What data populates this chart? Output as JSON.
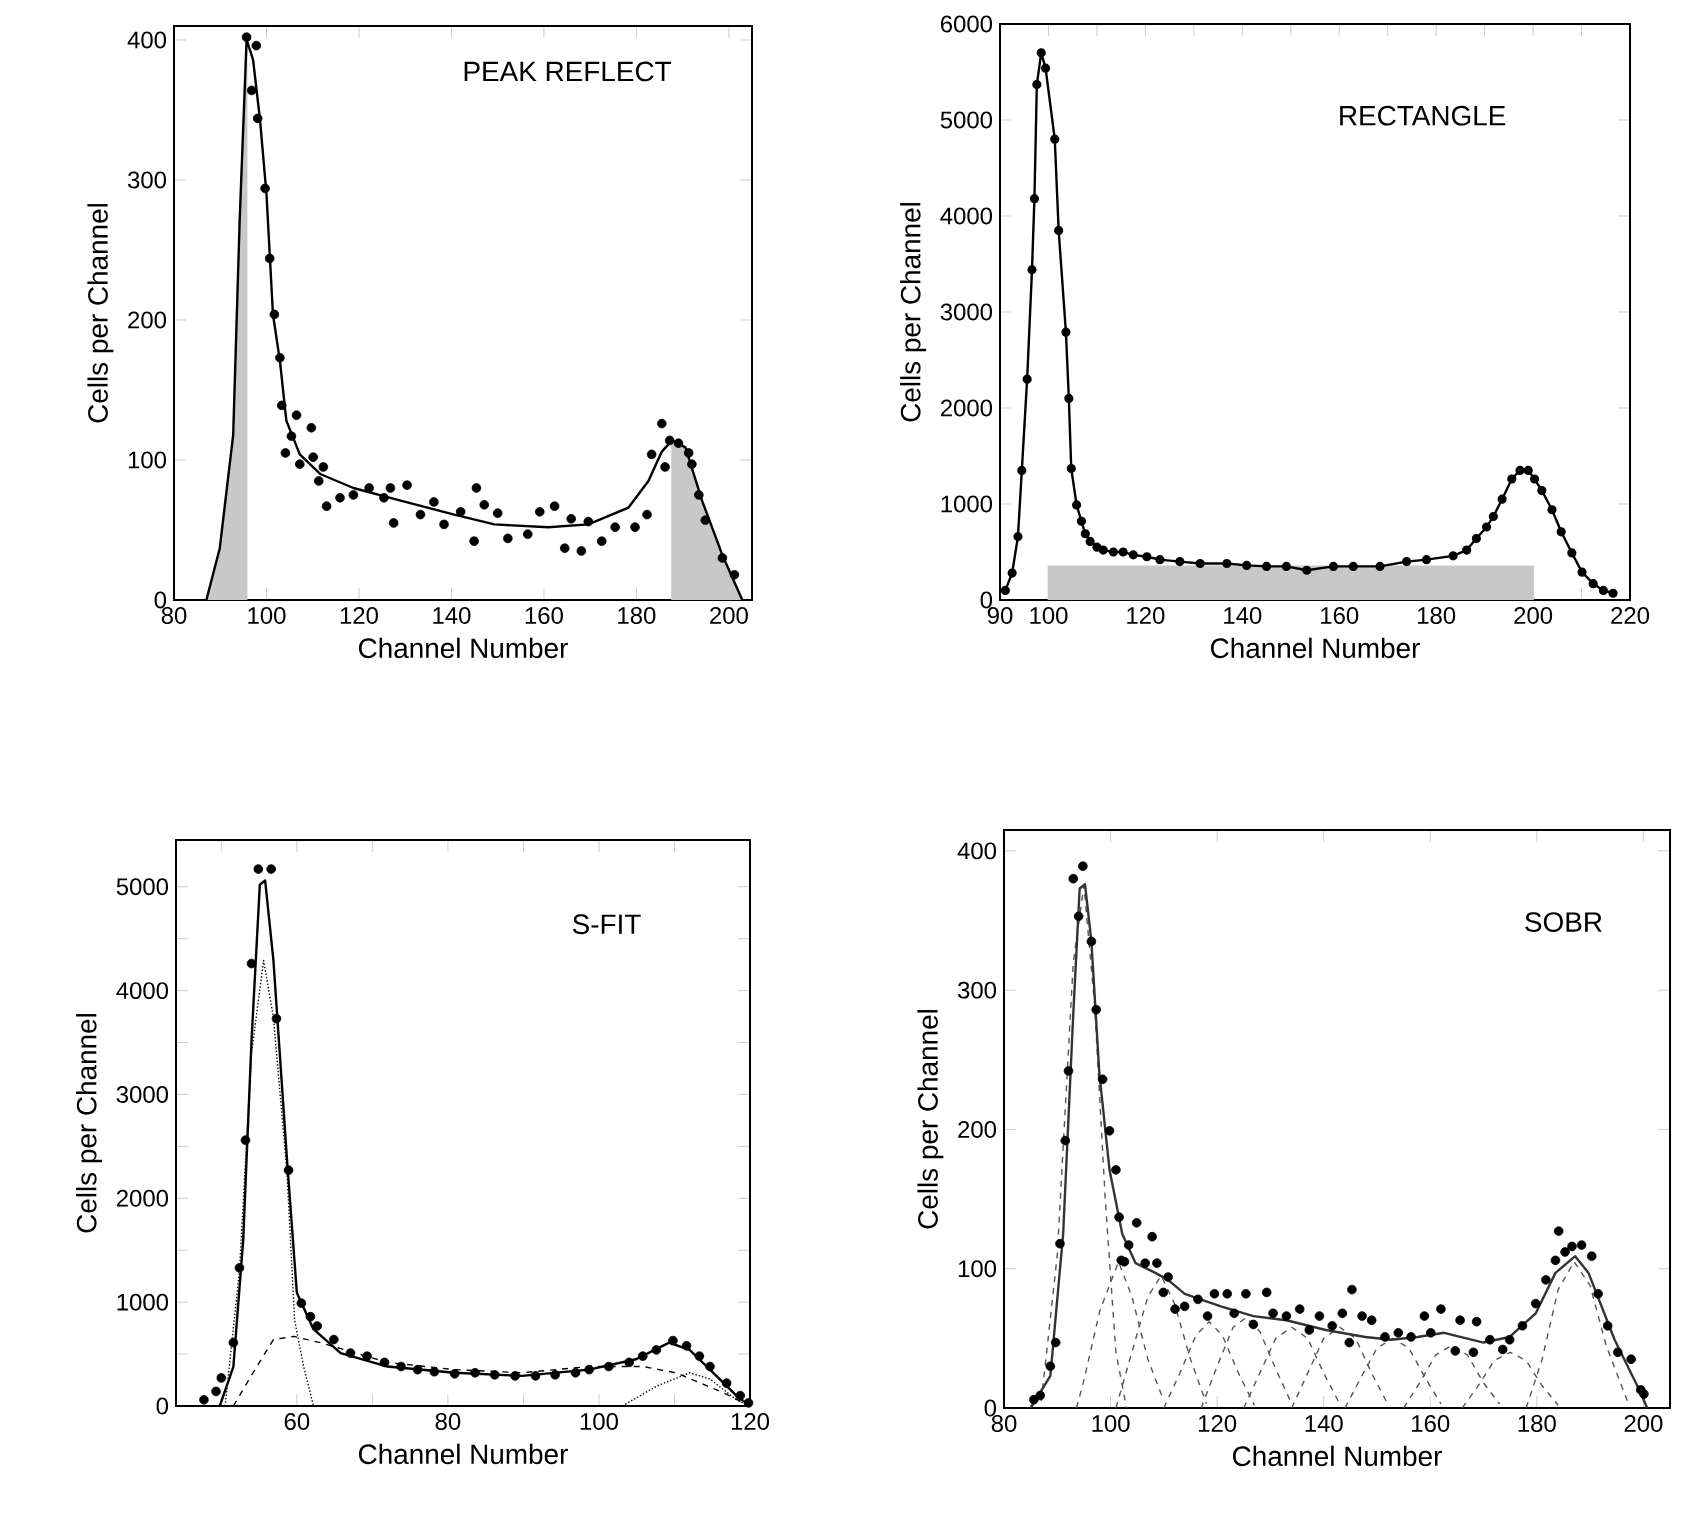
{
  "chart_data": [
    {
      "type": "line",
      "title": "PEAK REFLECT",
      "xlabel": "Channel Number",
      "ylabel": "Cells per Channel",
      "xlim": [
        80,
        205
      ],
      "ylim": [
        0,
        410
      ],
      "xticks": [
        80,
        100,
        120,
        140,
        160,
        180,
        200
      ],
      "yticks": [
        0,
        100,
        200,
        300,
        400
      ],
      "series": [
        {
          "type": "area",
          "color": "#c8c8c8",
          "x": [
            87,
            89.9,
            92.8,
            94.2,
            95.7
          ],
          "values": [
            0,
            37,
            118,
            271,
            400
          ]
        },
        {
          "type": "area",
          "color": "#c8c8c8",
          "x": [
            187.7,
            190.6,
            194.2,
            198.6,
            202.9
          ],
          "values": [
            114,
            109,
            71,
            32,
            0
          ]
        },
        {
          "type": "line",
          "color": "#000000",
          "line_style": "solid",
          "x": [
            87,
            89.9,
            92.8,
            94.2,
            95.7,
            97.1,
            98.6,
            100,
            101.4,
            102.9,
            104.3,
            107.2,
            111.6,
            118.8,
            129,
            140.6,
            149.3,
            160.9,
            169.6,
            178.3,
            182.6,
            185.5,
            187.7,
            190.6,
            194.2,
            198.6,
            202.9
          ],
          "values": [
            0,
            37,
            118,
            271,
            400,
            386,
            343,
            290,
            204,
            171,
            128,
            104,
            90,
            80,
            71,
            61,
            54,
            52,
            54,
            66,
            85,
            106,
            114,
            109,
            71,
            32,
            0
          ]
        },
        {
          "type": "scatter",
          "color": "#000000",
          "marker": "circle",
          "x": [
            95.7,
            97.8,
            96.8,
            98.1,
            99.7,
            100.7,
            101.7,
            102.9,
            103.3,
            105.4,
            106.5,
            104.1,
            107.2,
            109.7,
            110.1,
            111.3,
            112.3,
            113,
            115.9,
            118.8,
            122.2,
            125.4,
            126.8,
            127.5,
            130.4,
            133.3,
            136.2,
            138.4,
            142,
            144.9,
            145.4,
            147.1,
            150,
            152.2,
            156.5,
            159.1,
            162.3,
            164.5,
            165.9,
            168.1,
            169.6,
            172.5,
            175.4,
            179.7,
            182.3,
            183.3,
            185.5,
            186.2,
            187.2,
            189.1,
            191.3,
            192,
            193.5,
            194.9,
            198.6,
            201.2
          ],
          "values": [
            402,
            396,
            364,
            344,
            294,
            244,
            204,
            173,
            139,
            117,
            132,
            105,
            97,
            123,
            102,
            85,
            95,
            67,
            73,
            75,
            80,
            73,
            80,
            55,
            82,
            61,
            70,
            54,
            63,
            42,
            80,
            68,
            62,
            44,
            47,
            63,
            67,
            37,
            58,
            35,
            56,
            42,
            52,
            52,
            61,
            104,
            126,
            95,
            114,
            112,
            105,
            97,
            75,
            57,
            30,
            18
          ]
        }
      ]
    },
    {
      "type": "line",
      "title": "RECTANGLE",
      "xlabel": "Channel Number",
      "ylabel": "Cells per Channel",
      "xlim": [
        90,
        220
      ],
      "ylim": [
        0,
        6000
      ],
      "xticks": [
        90,
        100,
        {
          "value": 110,
          "label": null
        },
        120,
        {
          "value": 130,
          "label": null
        },
        140,
        {
          "value": 150,
          "label": null
        },
        160,
        {
          "value": 170,
          "label": null
        },
        180,
        {
          "value": 190,
          "label": null
        },
        200,
        {
          "value": 210,
          "label": null
        },
        220
      ],
      "yticks": [
        0,
        1000,
        2000,
        3000,
        4000,
        5000,
        6000
      ],
      "series": [
        {
          "type": "area",
          "color": "#c8c8c8",
          "x": [
            100,
            200
          ],
          "values": [
            350,
            350
          ]
        },
        {
          "type": "line",
          "color": "#000000",
          "line_style": "solid",
          "marker": "circle",
          "x": [
            91.1,
            92.5,
            93.7,
            94.5,
            95.6,
            96.6,
            97.1,
            97.6,
            98.5,
            99.4,
            101.3,
            102.1,
            103.6,
            104.2,
            104.7,
            105.8,
            106.8,
            107.6,
            108.6,
            110,
            111.3,
            113.4,
            115.4,
            117.5,
            120.3,
            123,
            127.1,
            131.3,
            136.8,
            140.9,
            145,
            149.1,
            153.3,
            158.8,
            162.9,
            168.4,
            173.9,
            178,
            183.5,
            186.3,
            188.3,
            190.4,
            191.8,
            193.6,
            195.6,
            197.3,
            199,
            200.3,
            201.8,
            203.9,
            205.8,
            208,
            210.1,
            212.4,
            214.5,
            216.5
          ],
          "values": [
            100,
            280,
            660,
            1350,
            2300,
            3440,
            4180,
            5370,
            5700,
            5540,
            4800,
            3850,
            2790,
            2100,
            1370,
            990,
            820,
            690,
            610,
            550,
            520,
            500,
            500,
            470,
            450,
            420,
            400,
            380,
            380,
            360,
            350,
            350,
            310,
            350,
            350,
            350,
            400,
            420,
            460,
            520,
            640,
            760,
            870,
            1050,
            1260,
            1350,
            1350,
            1260,
            1140,
            940,
            710,
            490,
            290,
            170,
            100,
            70
          ]
        }
      ]
    },
    {
      "type": "line",
      "title": "S-FIT",
      "xlabel": "Channel Number",
      "ylabel": "Cells per Channel",
      "xlim": [
        44,
        120
      ],
      "ylim": [
        0,
        5450
      ],
      "xticks": [
        {
          "value": 50,
          "label": null
        },
        60,
        {
          "value": 70,
          "label": null
        },
        80,
        {
          "value": 90,
          "label": null
        },
        100,
        {
          "value": 110,
          "label": null
        },
        120
      ],
      "yticks": [
        0,
        {
          "value": 500,
          "label": null
        },
        1000,
        {
          "value": 1500,
          "label": null
        },
        2000,
        {
          "value": 2500,
          "label": null
        },
        3000,
        {
          "value": 3500,
          "label": null
        },
        4000,
        {
          "value": 4500,
          "label": null
        },
        5000
      ],
      "series": [
        {
          "type": "line",
          "color": "#000000",
          "line_style": "dotted",
          "x": [
            50.5,
            52.4,
            54,
            55.6,
            56.9,
            58.7,
            59.7,
            60.9,
            62.2
          ],
          "values": [
            0,
            1300,
            3400,
            4290,
            3740,
            2240,
            830,
            380,
            0
          ]
        },
        {
          "type": "line",
          "color": "#000000",
          "line_style": "dashed",
          "x": [
            51.6,
            54.2,
            56.9,
            59.6,
            63.1,
            72,
            80.9,
            89.8,
            98.7,
            105.8,
            110.2,
            116.4,
            120
          ],
          "values": [
            0,
            320,
            640,
            670,
            610,
            420,
            350,
            320,
            380,
            380,
            320,
            130,
            0
          ]
        },
        {
          "type": "line",
          "color": "#000000",
          "line_style": "dotted",
          "x": [
            103.1,
            107.6,
            112,
            114.7,
            118.2,
            120
          ],
          "values": [
            0,
            190,
            320,
            260,
            60,
            0
          ]
        },
        {
          "type": "line",
          "color": "#000000",
          "line_style": "solid",
          "x": [
            49.8,
            51.6,
            52.9,
            54,
            55.1,
            55.8,
            56.9,
            58.7,
            60,
            62.2,
            65.8,
            72,
            80.9,
            89.8,
            98.7,
            104.9,
            109.3,
            112,
            114.7,
            118.2,
            120
          ],
          "values": [
            0,
            380,
            1600,
            3520,
            5020,
            5060,
            4290,
            2370,
            1090,
            740,
            510,
            380,
            320,
            290,
            350,
            450,
            610,
            540,
            350,
            100,
            0
          ]
        },
        {
          "type": "scatter",
          "color": "#000000",
          "marker": "circle",
          "x": [
            47.7,
            49.3,
            50,
            51.6,
            52.4,
            53.2,
            54,
            54.9,
            56.6,
            57.3,
            58.9,
            60.6,
            61.8,
            62.7,
            64.9,
            67.1,
            69.3,
            71.6,
            73.8,
            76,
            78.2,
            80.9,
            83.6,
            86.2,
            88.9,
            91.6,
            94.2,
            96.9,
            98.7,
            101.3,
            104,
            105.8,
            107.6,
            109.8,
            111.6,
            113.3,
            114.7,
            116.9,
            118.7,
            119.8
          ],
          "values": [
            60,
            140,
            270,
            610,
            1330,
            2560,
            4260,
            5170,
            5170,
            3730,
            2270,
            990,
            860,
            770,
            640,
            510,
            480,
            420,
            380,
            350,
            330,
            310,
            320,
            300,
            290,
            290,
            300,
            320,
            350,
            380,
            420,
            480,
            540,
            630,
            580,
            480,
            380,
            220,
            100,
            30
          ]
        }
      ]
    },
    {
      "type": "line",
      "title": "SOBR",
      "xlabel": "Channel Number",
      "ylabel": "Cells per Channel",
      "xlim": [
        80,
        205
      ],
      "ylim": [
        0,
        415
      ],
      "xticks": [
        80,
        100,
        120,
        140,
        160,
        180,
        200
      ],
      "yticks": [
        0,
        100,
        200,
        300,
        400
      ],
      "series": [
        {
          "type": "line",
          "color": "#555555",
          "line_style": "dashed",
          "x": [
            87,
            90,
            93,
            95,
            97,
            99,
            101,
            103
          ],
          "values": [
            5,
            110,
            320,
            375,
            290,
            150,
            40,
            0
          ]
        },
        {
          "type": "line",
          "color": "#555555",
          "line_style": "dashed",
          "x": [
            93.6,
            95,
            98,
            101.5,
            104,
            107,
            110
          ],
          "values": [
            0,
            20,
            70,
            105,
            80,
            35,
            5
          ]
        },
        {
          "type": "line",
          "color": "#555555",
          "line_style": "dashed",
          "x": [
            101,
            104,
            107,
            109.5,
            112,
            115,
            118
          ],
          "values": [
            0,
            40,
            80,
            95,
            75,
            35,
            3
          ]
        },
        {
          "type": "line",
          "color": "#555555",
          "line_style": "dashed",
          "x": [
            110,
            113,
            116,
            118.5,
            121,
            124,
            127
          ],
          "values": [
            0,
            25,
            52,
            62,
            52,
            25,
            2
          ]
        },
        {
          "type": "line",
          "color": "#555555",
          "line_style": "dashed",
          "x": [
            117,
            120,
            123,
            125.5,
            128,
            131,
            134
          ],
          "values": [
            0,
            30,
            58,
            65,
            55,
            28,
            3
          ]
        },
        {
          "type": "line",
          "color": "#555555",
          "line_style": "dashed",
          "x": [
            125,
            128,
            131,
            134,
            137,
            140,
            143
          ],
          "values": [
            0,
            25,
            50,
            58,
            50,
            25,
            3
          ]
        },
        {
          "type": "line",
          "color": "#555555",
          "line_style": "dashed",
          "x": [
            134,
            137,
            140,
            143,
            146,
            149,
            152
          ],
          "values": [
            0,
            25,
            50,
            58,
            50,
            25,
            3
          ]
        },
        {
          "type": "line",
          "color": "#555555",
          "line_style": "dashed",
          "x": [
            144,
            147,
            150,
            153,
            156,
            159,
            162
          ],
          "values": [
            0,
            22,
            43,
            50,
            43,
            22,
            3
          ]
        },
        {
          "type": "line",
          "color": "#555555",
          "line_style": "dashed",
          "x": [
            155,
            158,
            161,
            164,
            167,
            170,
            173
          ],
          "values": [
            0,
            18,
            38,
            45,
            38,
            18,
            3
          ]
        },
        {
          "type": "line",
          "color": "#555555",
          "line_style": "dashed",
          "x": [
            166,
            169,
            172,
            175,
            178,
            181,
            184
          ],
          "values": [
            0,
            16,
            34,
            40,
            34,
            16,
            2
          ]
        },
        {
          "type": "line",
          "color": "#555555",
          "line_style": "dashed",
          "x": [
            178,
            181,
            184,
            187,
            190,
            193,
            197
          ],
          "values": [
            0,
            35,
            85,
            105,
            88,
            45,
            5
          ]
        },
        {
          "type": "line",
          "color": "#333333",
          "line_style": "solid",
          "x": [
            85,
            88.7,
            91.1,
            93,
            94.2,
            95.2,
            96.4,
            97.9,
            99.8,
            102.2,
            104.7,
            108.4,
            110.8,
            113.9,
            120.7,
            126.8,
            133,
            140.4,
            147.8,
            152.7,
            157.6,
            162.6,
            170,
            174.9,
            179.8,
            183.5,
            187.2,
            189.7,
            194.6,
            199.5,
            200.7
          ],
          "values": [
            0,
            23,
            125,
            283,
            373,
            376,
            335,
            240,
            171,
            125,
            104,
            97,
            92,
            82,
            73,
            66,
            63,
            56,
            51,
            49,
            51,
            54,
            47,
            51,
            68,
            97,
            109,
            97,
            49,
            11,
            0
          ]
        },
        {
          "type": "scatter",
          "color": "#000000",
          "marker": "circle",
          "x": [
            85.6,
            86.8,
            88.7,
            89.7,
            90.5,
            91.5,
            92.1,
            93,
            94,
            94.8,
            96.4,
            97.3,
            98.5,
            99.8,
            101,
            101.6,
            102,
            102.6,
            103.4,
            104.9,
            106.5,
            107.8,
            108.7,
            109.9,
            110.8,
            112.1,
            113.9,
            116.4,
            118.2,
            119.5,
            121.9,
            123.2,
            125.4,
            126.8,
            129.3,
            130.5,
            133,
            135.5,
            137.3,
            139.2,
            141.6,
            143.5,
            144.8,
            145.3,
            147.2,
            149,
            151.5,
            154,
            156.4,
            158.9,
            160.1,
            162,
            164.7,
            165.6,
            168.1,
            168.7,
            171.2,
            173.6,
            174.9,
            177.3,
            179.8,
            181.7,
            183.5,
            184.1,
            185.3,
            186.6,
            188.4,
            190.3,
            191.5,
            193.3,
            195.2,
            197.7,
            199.5,
            200.1
          ],
          "values": [
            6,
            9,
            30,
            47,
            118,
            192,
            242,
            380,
            353,
            389,
            335,
            286,
            236,
            199,
            171,
            137,
            106,
            105,
            117,
            133,
            104,
            123,
            104,
            83,
            94,
            71,
            73,
            78,
            66,
            82,
            82,
            68,
            82,
            60,
            83,
            68,
            66,
            71,
            56,
            66,
            59,
            68,
            47,
            85,
            66,
            63,
            51,
            54,
            51,
            66,
            54,
            71,
            41,
            63,
            40,
            62,
            49,
            42,
            49,
            59,
            75,
            92,
            106,
            127,
            112,
            116,
            117,
            109,
            82,
            59,
            40,
            35,
            13,
            10
          ]
        }
      ]
    }
  ]
}
